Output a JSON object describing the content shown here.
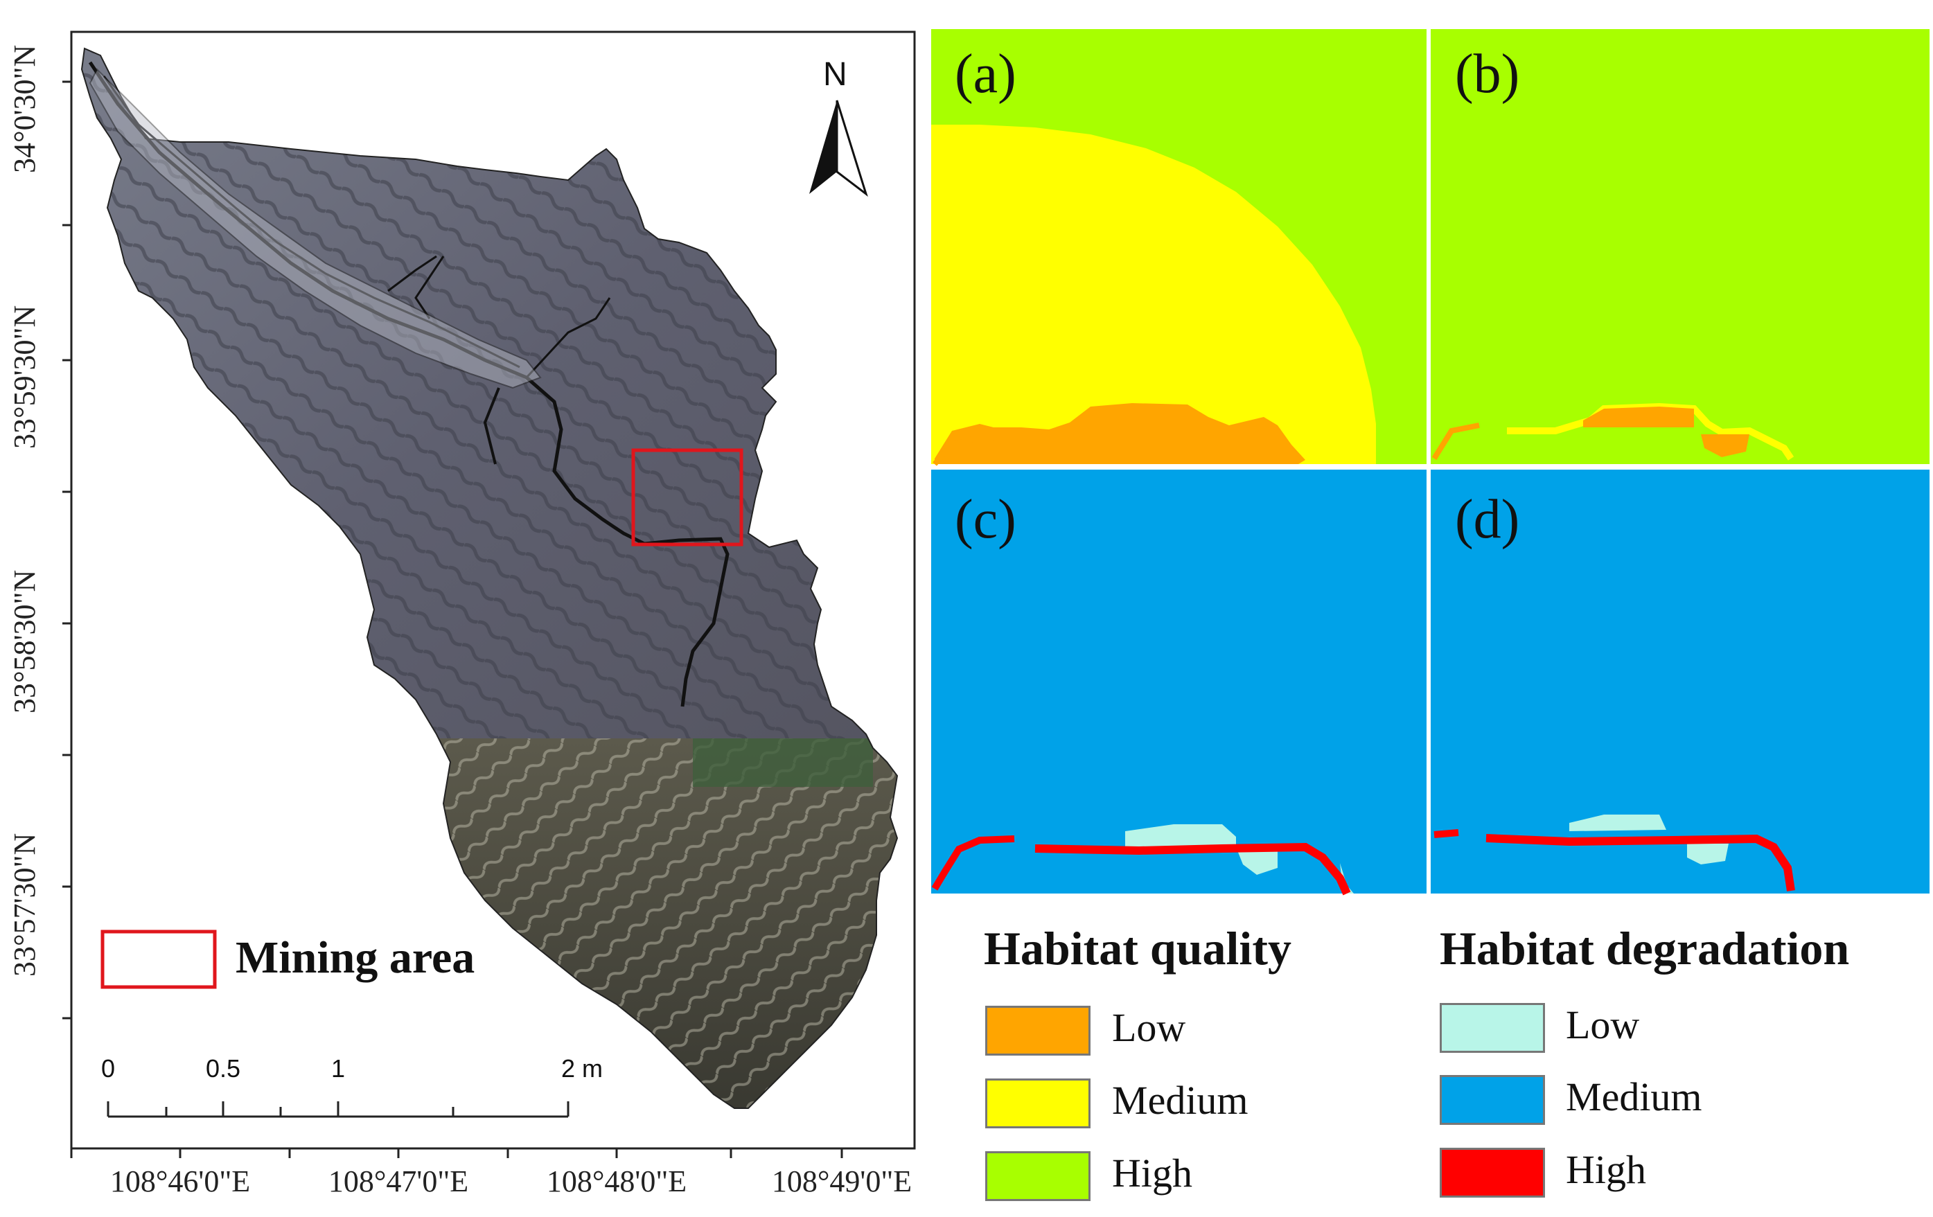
{
  "map": {
    "latitude_labels": [
      "34°0'30\"N",
      "33°59'30\"N",
      "33°58'30\"N",
      "33°57'30\"N"
    ],
    "longitude_labels": [
      "108°46'0\"E",
      "108°47'0\"E",
      "108°48'0\"E",
      "108°49'0\"E"
    ],
    "north_label": "N",
    "legend_label": "Mining area",
    "scale_labels": [
      "0",
      "0.5",
      "1",
      "2 m"
    ],
    "colors": {
      "mining_box": "#e0161c",
      "terrain_upper": "#6b6e7a",
      "terrain_lower": "#4c4a3f"
    }
  },
  "panels": [
    {
      "label": "(a)",
      "theme": "quality"
    },
    {
      "label": "(b)",
      "theme": "quality"
    },
    {
      "label": "(c)",
      "theme": "degradation"
    },
    {
      "label": "(d)",
      "theme": "degradation"
    }
  ],
  "legends": {
    "quality": {
      "title": "Habitat quality",
      "items": [
        {
          "label": "Low",
          "color": "#ffa500"
        },
        {
          "label": "Medium",
          "color": "#ffff00"
        },
        {
          "label": "High",
          "color": "#a8ff00"
        }
      ]
    },
    "degradation": {
      "title": "Habitat degradation",
      "items": [
        {
          "label": "Low",
          "color": "#b8f5e8"
        },
        {
          "label": "Medium",
          "color": "#00a2e8"
        },
        {
          "label": "High",
          "color": "#ff0000"
        }
      ]
    }
  }
}
